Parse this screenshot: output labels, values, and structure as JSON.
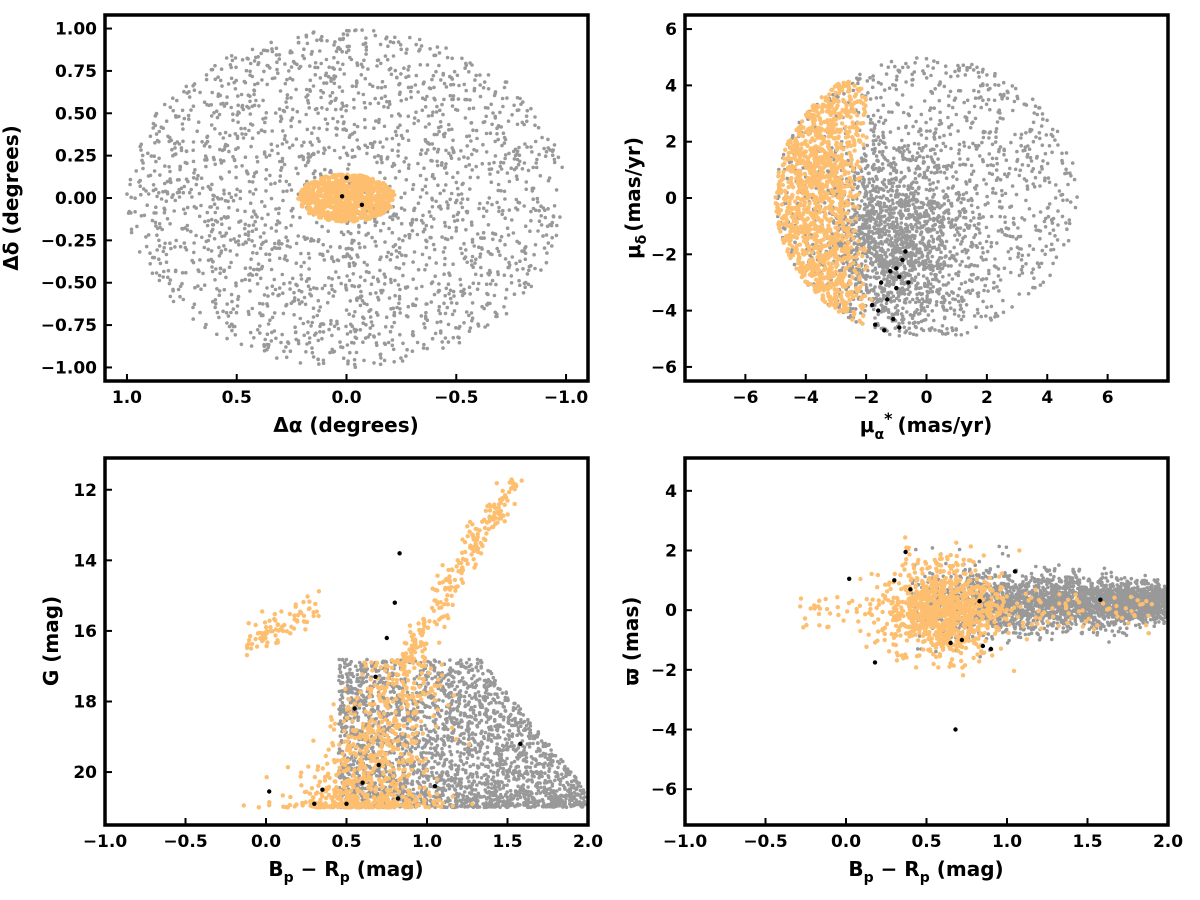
{
  "colors": {
    "background": "#808080",
    "members": "#FDBF6F",
    "highlight": "#000000",
    "axes": "#000000"
  },
  "chart_data": [
    {
      "type": "scatter",
      "id": "sky",
      "xlabel": "Δα (degrees)",
      "ylabel": "Δδ (degrees)",
      "xlim": [
        1.1,
        -1.1
      ],
      "ylim": [
        -1.08,
        1.08
      ],
      "x_inverted": true,
      "xticks": [
        1.0,
        0.5,
        0.0,
        -0.5,
        -1.0
      ],
      "xtick_labels": [
        "1.0",
        "0.5",
        "0.0",
        "−0.5",
        "−1.0"
      ],
      "yticks": [
        1.0,
        0.75,
        0.5,
        0.25,
        0.0,
        -0.25,
        -0.5,
        -0.75,
        -1.0
      ],
      "ytick_labels": [
        "1.00",
        "0.75",
        "0.50",
        "0.25",
        "0.00",
        "−0.25",
        "−0.50",
        "−0.75",
        "−1.00"
      ],
      "grid": false,
      "series": [
        {
          "role": "field",
          "color": "#999999",
          "shape": "uniform disk, radius 1.0 deg, centre (0,0)",
          "count": 2200
        },
        {
          "role": "members",
          "color": "#FDBF6F",
          "shape": "ellipse centred (0,0), semi-axes 0.22 x 0.14 deg",
          "count": 900
        },
        {
          "role": "highlight",
          "color": "#000000",
          "points": [
            [
              0.0,
              0.12
            ],
            [
              -0.07,
              -0.04
            ],
            [
              0.02,
              0.01
            ]
          ]
        }
      ]
    },
    {
      "type": "scatter",
      "id": "proper-motion",
      "xlabel": "μα* (mas/yr)",
      "ylabel": "μδ (mas/yr)",
      "xlim": [
        -8,
        8
      ],
      "ylim": [
        -6.5,
        6.5
      ],
      "xticks": [
        -6,
        -4,
        -2,
        0,
        2,
        4,
        6
      ],
      "xtick_labels": [
        "−6",
        "−4",
        "−2",
        "0",
        "2",
        "4",
        "6"
      ],
      "yticks": [
        6,
        4,
        2,
        0,
        -2,
        -4,
        -6
      ],
      "ytick_labels": [
        "6",
        "4",
        "2",
        "0",
        "−2",
        "−4",
        "−6"
      ],
      "grid": false,
      "series": [
        {
          "role": "field",
          "color": "#999999",
          "shape": "disk, radius 5 mas/yr, concentrated near (-1,-1)",
          "count": 2600
        },
        {
          "role": "members",
          "color": "#FDBF6F",
          "shape": "crescent on left edge of disk, x from -5 to -1.5",
          "count": 1300
        },
        {
          "role": "highlight",
          "color": "#000000",
          "points": [
            [
              -1.5,
              -3.0
            ],
            [
              -1.2,
              -2.6
            ],
            [
              -0.9,
              -2.8
            ],
            [
              -1.0,
              -3.2
            ],
            [
              -1.6,
              -4.0
            ],
            [
              -1.4,
              -4.7
            ],
            [
              -0.9,
              -4.6
            ],
            [
              -1.3,
              -3.6
            ],
            [
              -0.8,
              -2.2
            ],
            [
              -0.7,
              -1.9
            ],
            [
              -1.1,
              -4.3
            ],
            [
              -1.8,
              -3.8
            ],
            [
              -1.0,
              -2.5
            ],
            [
              -0.6,
              -3.0
            ],
            [
              -1.7,
              -4.5
            ]
          ]
        }
      ]
    },
    {
      "type": "scatter",
      "id": "cmd",
      "xlabel": "Bp − Rp (mag)",
      "ylabel": "G (mag)",
      "xlim": [
        -1.0,
        2.0
      ],
      "ylim": [
        21.5,
        11.1
      ],
      "y_inverted": true,
      "xticks": [
        -1.0,
        -0.5,
        0.0,
        0.5,
        1.0,
        1.5,
        2.0
      ],
      "xtick_labels": [
        "−1.0",
        "−0.5",
        "0.0",
        "0.5",
        "1.0",
        "1.5",
        "2.0"
      ],
      "yticks": [
        20,
        18,
        16,
        14,
        12
      ],
      "ytick_labels": [
        "20",
        "18",
        "16",
        "14",
        "12"
      ],
      "grid": false,
      "series": [
        {
          "role": "field",
          "color": "#999999",
          "shape": "broad band G 17-21, colour 0.3-2.0, densest at red faint end",
          "count": 2600
        },
        {
          "role": "members",
          "color": "#FDBF6F",
          "shape": "main sequence from (0.5,21) to (0.85,17), giant branch to (1.55,11.7), blue branch (-0.1..0.35, 15-16.5)",
          "count": 1100
        },
        {
          "role": "highlight",
          "color": "#000000",
          "points": [
            [
              0.02,
              20.55
            ],
            [
              0.3,
              20.9
            ],
            [
              0.5,
              20.9
            ],
            [
              0.35,
              20.5
            ],
            [
              0.82,
              20.75
            ],
            [
              1.05,
              20.4
            ],
            [
              0.6,
              20.3
            ],
            [
              0.7,
              19.8
            ],
            [
              1.58,
              19.2
            ],
            [
              0.55,
              18.2
            ],
            [
              0.68,
              17.3
            ],
            [
              0.8,
              15.2
            ],
            [
              0.83,
              13.8
            ],
            [
              0.75,
              16.2
            ]
          ]
        }
      ]
    },
    {
      "type": "scatter",
      "id": "parallax",
      "xlabel": "Bp − Rp (mag)",
      "ylabel": "ϖ (mas)",
      "xlim": [
        -1.0,
        2.0
      ],
      "ylim": [
        -7.2,
        5.1
      ],
      "xticks": [
        -1.0,
        -0.5,
        0.0,
        0.5,
        1.0,
        1.5,
        2.0
      ],
      "xtick_labels": [
        "−1.0",
        "−0.5",
        "0.0",
        "0.5",
        "1.0",
        "1.5",
        "2.0"
      ],
      "yticks": [
        4,
        2,
        0,
        -2,
        -4,
        -6
      ],
      "ytick_labels": [
        "4",
        "2",
        "0",
        "−2",
        "−4",
        "−6"
      ],
      "grid": false,
      "series": [
        {
          "role": "field",
          "color": "#999999",
          "shape": "horizontal band near ϖ≈0, widest scatter at colour 0.5-1.0",
          "count": 2600
        },
        {
          "role": "members",
          "color": "#FDBF6F",
          "shape": "blob centred (0.6,0), spread ±2 mas, tail toward blue",
          "count": 1100
        },
        {
          "role": "highlight",
          "color": "#000000",
          "points": [
            [
              0.37,
              1.95
            ],
            [
              0.02,
              1.05
            ],
            [
              0.3,
              1.0
            ],
            [
              0.83,
              0.3
            ],
            [
              0.18,
              -1.75
            ],
            [
              0.65,
              -1.1
            ],
            [
              0.72,
              -1.0
            ],
            [
              0.85,
              -1.2
            ],
            [
              0.9,
              -1.3
            ],
            [
              0.68,
              -4.0
            ],
            [
              1.58,
              0.35
            ],
            [
              1.05,
              1.3
            ],
            [
              0.4,
              0.7
            ]
          ]
        }
      ]
    }
  ]
}
